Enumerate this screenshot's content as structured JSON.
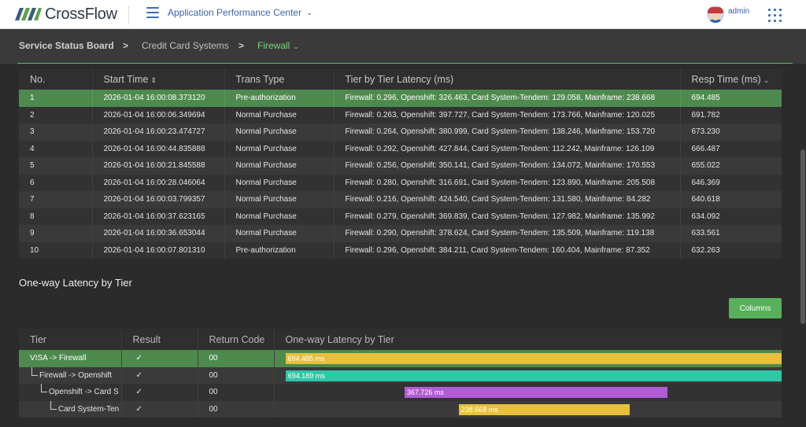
{
  "header": {
    "brand": "CrossFlow",
    "app_title": "Application Performance Center",
    "user_name": "admin"
  },
  "breadcrumb": {
    "items": [
      "Service Status Board",
      "Credit Card Systems",
      "Firewall"
    ],
    "separator": ">"
  },
  "transactions": {
    "columns": [
      "No.",
      "Start Time",
      "Trans Type",
      "Tier by Tier Latency (ms)",
      "Resp Time (ms)"
    ],
    "rows": [
      [
        "1",
        "2026-01-04 16:00:08.373120",
        "Pre-authorization",
        "Firewall: 0.296, Openshift: 326.463, Card System-Tendem: 129.058, Mainframe: 238.668",
        "694.485"
      ],
      [
        "2",
        "2026-01-04 16:00:06.349694",
        "Normal Purchase",
        "Firewall: 0.263, Openshift: 397.727, Card System-Tendem: 173.766, Mainframe: 120.025",
        "691.782"
      ],
      [
        "3",
        "2026-01-04 16:00:23.474727",
        "Normal Purchase",
        "Firewall: 0.264, Openshift: 380.999, Card System-Tendem: 138.246, Mainframe: 153.720",
        "673.230"
      ],
      [
        "4",
        "2026-01-04 16:00:44.835888",
        "Normal Purchase",
        "Firewall: 0.292, Openshift: 427.844, Card System-Tendem: 112.242, Mainframe: 126.109",
        "666.487"
      ],
      [
        "5",
        "2026-01-04 16:00:21.845588",
        "Normal Purchase",
        "Firewall: 0.256, Openshift: 350.141, Card System-Tendem: 134.072, Mainframe: 170.553",
        "655.022"
      ],
      [
        "6",
        "2026-01-04 16:00:28.046064",
        "Normal Purchase",
        "Firewall: 0.280, Openshift: 316.691, Card System-Tendem: 123.890, Mainframe: 205.508",
        "646.369"
      ],
      [
        "7",
        "2026-01-04 16:00:03.799357",
        "Normal Purchase",
        "Firewall: 0.216, Openshift: 424.540, Card System-Tendem: 131.580, Mainframe: 84.282",
        "640.618"
      ],
      [
        "8",
        "2026-01-04 16:00:37.623165",
        "Normal Purchase",
        "Firewall: 0.279, Openshift: 369.839, Card System-Tendem: 127.982, Mainframe: 135.992",
        "634.092"
      ],
      [
        "9",
        "2026-01-04 16:00:36.653044",
        "Normal Purchase",
        "Firewall: 0.290, Openshift: 378.624, Card System-Tendem: 135.509, Mainframe: 119.138",
        "633.561"
      ],
      [
        "10",
        "2026-01-04 16:00:07.801310",
        "Pre-authorization",
        "Firewall: 0.296, Openshift: 384.211, Card System-Tendem: 160.404, Mainframe: 87.352",
        "632.263"
      ]
    ],
    "selected_row": 0
  },
  "tier_section": {
    "title": "One-way Latency by Tier",
    "columns_button": "Columns",
    "columns": [
      "Tier",
      "Result",
      "Return Code",
      "One-way Latency by Tier"
    ],
    "rows": [
      {
        "tier": "VISA -> Firewall",
        "depth": 0,
        "result": "✓",
        "code": "00",
        "bar_label": "694.485 ms",
        "start_ms": 0,
        "duration_ms": 694.485,
        "color": "#e8c03e"
      },
      {
        "tier": "Firewall -> Openshift",
        "depth": 1,
        "result": "✓",
        "code": "00",
        "bar_label": "694.189 ms",
        "start_ms": 0.296,
        "duration_ms": 694.189,
        "color": "#2ec8a6"
      },
      {
        "tier": "Openshift -> Card S",
        "depth": 2,
        "result": "✓",
        "code": "00",
        "bar_label": "367.726 ms",
        "start_ms": 166.63,
        "duration_ms": 367.726,
        "color": "#b05cd6"
      },
      {
        "tier": "Card System-Ten",
        "depth": 3,
        "result": "✓",
        "code": "00",
        "bar_label": "238.668 ms",
        "start_ms": 242.35,
        "duration_ms": 238.668,
        "color": "#e8c03e"
      }
    ],
    "timeline_total_ms": 694.485,
    "selected_row": 0
  },
  "colors": {
    "accent_green": "#58b05a",
    "selected_row": "#4e8a4e",
    "brand_blue": "#3a63a8"
  }
}
